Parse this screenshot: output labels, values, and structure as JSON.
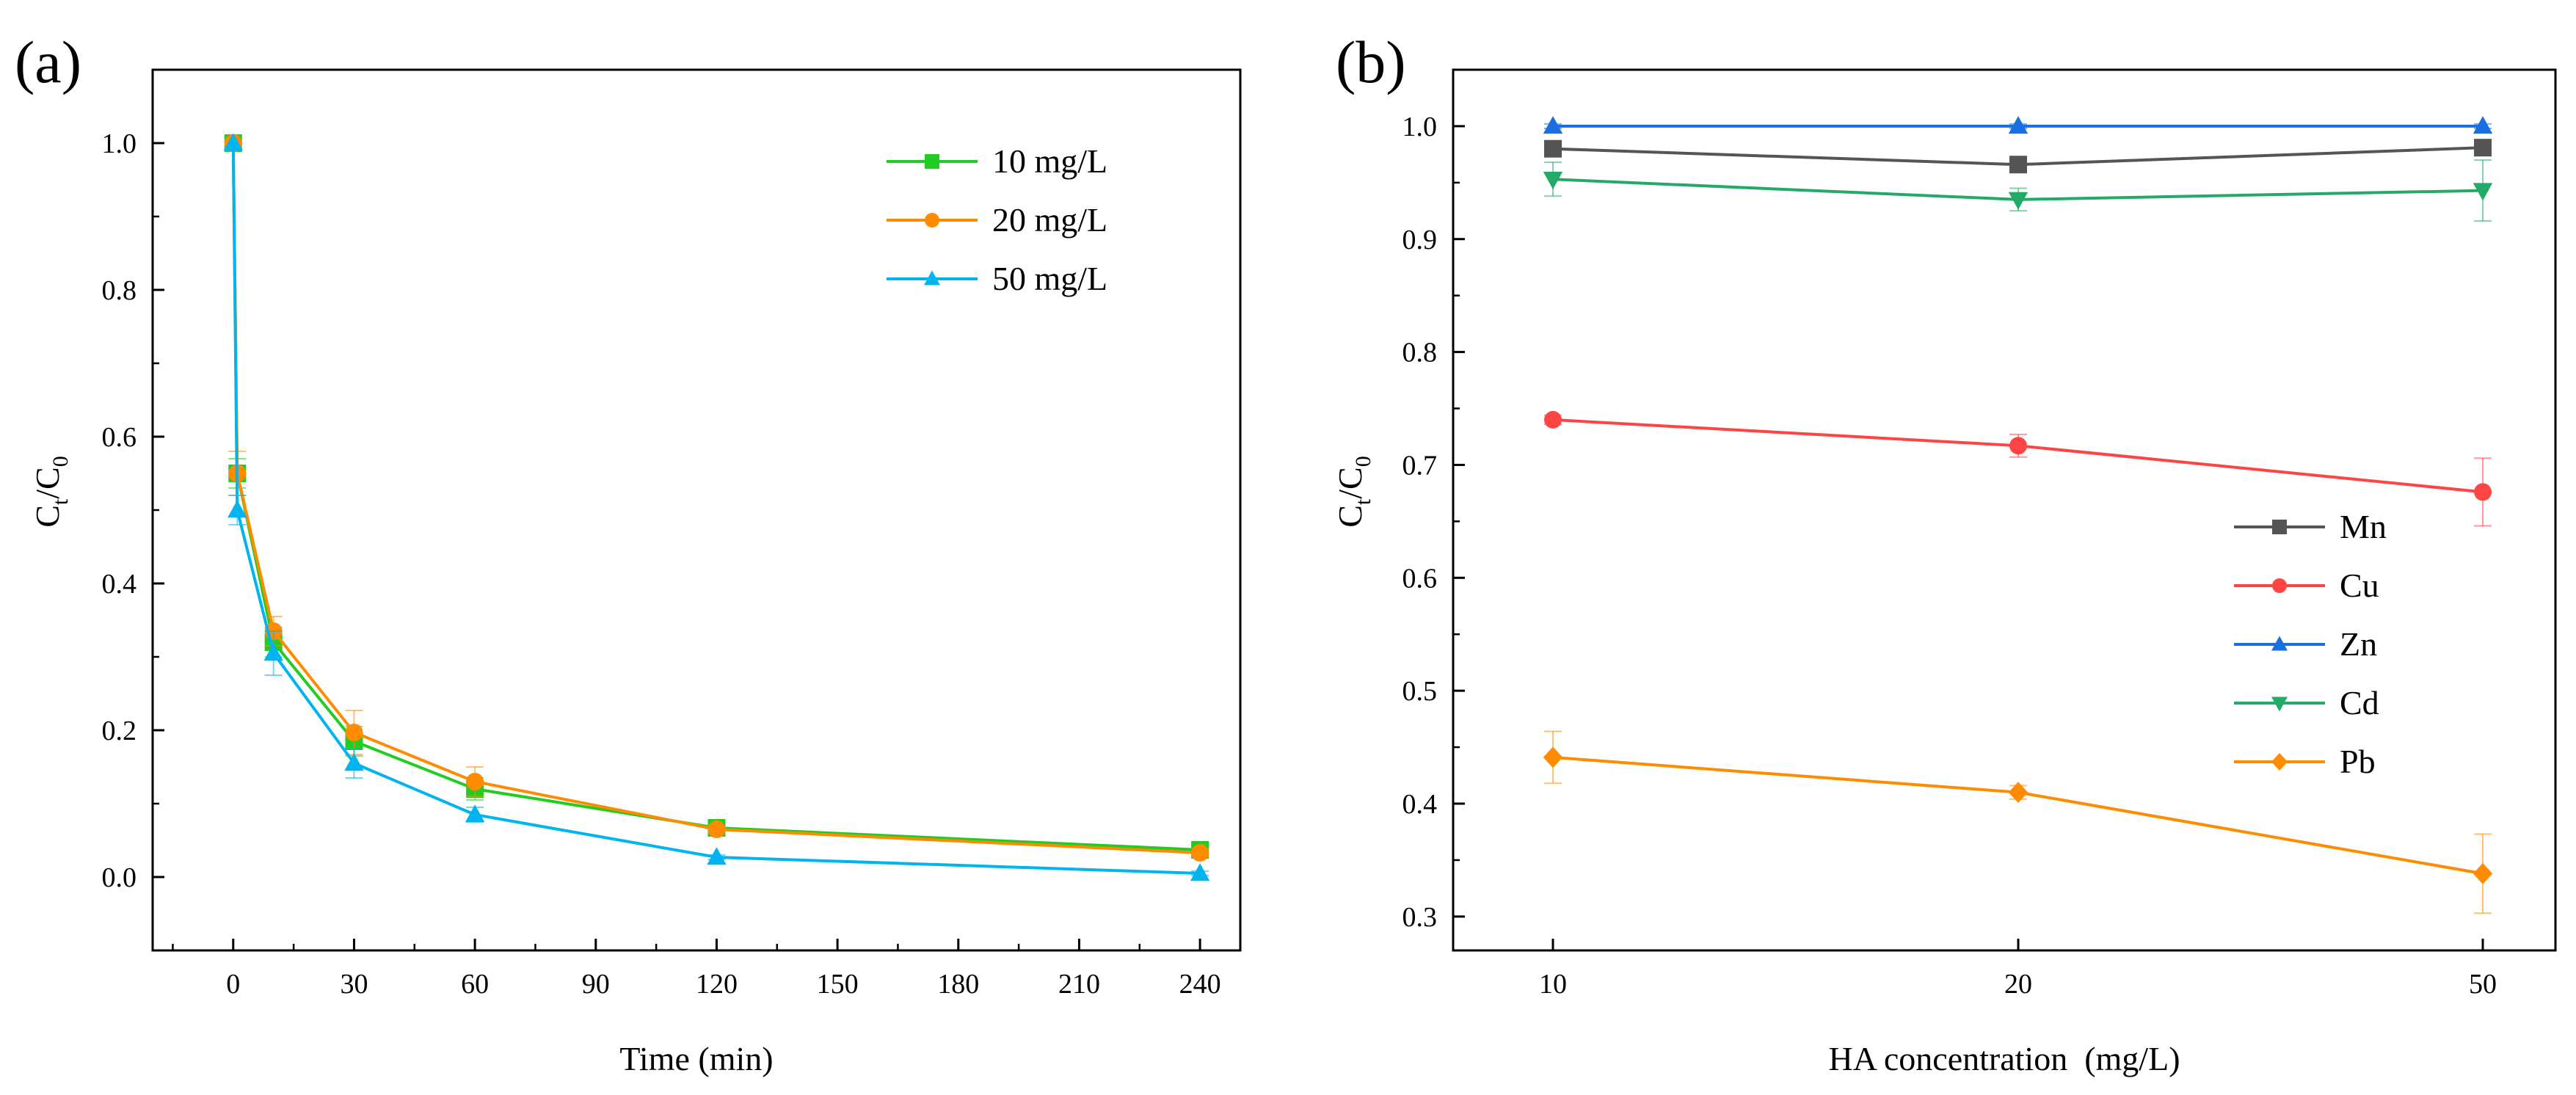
{
  "chart_data": [
    {
      "panel_label": "(a)",
      "type": "line",
      "xlabel": "Time (min)",
      "ylabel": "C_t/C_0",
      "ylabel_main": "C",
      "ylabel_sub1": "t",
      "ylabel_sub2": "0",
      "xlim": [
        -20,
        250
      ],
      "ylim": [
        -0.1,
        1.1
      ],
      "xticks": [
        0,
        30,
        60,
        90,
        120,
        150,
        180,
        210,
        240
      ],
      "yticks": [
        0.0,
        0.2,
        0.4,
        0.6,
        0.8,
        1.0
      ],
      "ytick_labels": [
        "0.0",
        "0.2",
        "0.4",
        "0.6",
        "0.8",
        "1.0"
      ],
      "legend_position": "top-right",
      "series": [
        {
          "name": "10 mg/L",
          "color": "#22cc22",
          "marker": "square",
          "x": [
            0,
            1,
            10,
            30,
            60,
            120,
            240
          ],
          "y": [
            1.0,
            0.55,
            0.32,
            0.185,
            0.12,
            0.067,
            0.037
          ],
          "err": [
            0.0,
            0.02,
            0.02,
            0.02,
            0.015,
            0.005,
            0.005
          ]
        },
        {
          "name": "20 mg/L",
          "color": "#ff8c00",
          "marker": "circle",
          "x": [
            0,
            1,
            10,
            30,
            60,
            120,
            240
          ],
          "y": [
            1.0,
            0.55,
            0.335,
            0.197,
            0.13,
            0.065,
            0.033
          ],
          "err": [
            0.0,
            0.03,
            0.02,
            0.03,
            0.02,
            0.005,
            0.005
          ]
        },
        {
          "name": "50 mg/L",
          "color": "#00b4f0",
          "marker": "triangle-up",
          "x": [
            0,
            1,
            10,
            30,
            60,
            120,
            240
          ],
          "y": [
            1.0,
            0.5,
            0.305,
            0.155,
            0.085,
            0.027,
            0.005
          ],
          "err": [
            0.0,
            0.02,
            0.03,
            0.02,
            0.01,
            0.003,
            0.003
          ]
        }
      ]
    },
    {
      "panel_label": "(b)",
      "type": "line",
      "xlabel": "HA concentration  (mg/L)",
      "ylabel": "C_t/C_0",
      "ylabel_main": "C",
      "ylabel_sub1": "t",
      "ylabel_sub2": "0",
      "categories": [
        "10",
        "20",
        "50"
      ],
      "ylim": [
        0.27,
        1.05
      ],
      "yticks": [
        0.3,
        0.4,
        0.5,
        0.6,
        0.7,
        0.8,
        0.9,
        1.0
      ],
      "ytick_labels": [
        "0.3",
        "0.4",
        "0.5",
        "0.6",
        "0.7",
        "0.8",
        "0.9",
        "1.0"
      ],
      "legend_position": "lower-right",
      "series": [
        {
          "name": "Mn",
          "color": "#555555",
          "marker": "square",
          "y": [
            0.98,
            0.966,
            0.981
          ],
          "err": [
            0.006,
            0.005,
            0.006
          ]
        },
        {
          "name": "Cu",
          "color": "#ff4444",
          "marker": "circle",
          "y": [
            0.74,
            0.717,
            0.676
          ],
          "err": [
            0.004,
            0.01,
            0.03
          ]
        },
        {
          "name": "Zn",
          "color": "#1a6fe0",
          "marker": "triangle-up",
          "y": [
            1.0,
            1.0,
            1.0
          ],
          "err": [
            0.002,
            0.002,
            0.002
          ]
        },
        {
          "name": "Cd",
          "color": "#22aa66",
          "marker": "triangle-down",
          "y": [
            0.953,
            0.935,
            0.943
          ],
          "err": [
            0.015,
            0.01,
            0.027
          ]
        },
        {
          "name": "Pb",
          "color": "#ff8c00",
          "marker": "diamond",
          "y": [
            0.441,
            0.41,
            0.338
          ],
          "err": [
            0.023,
            0.006,
            0.035
          ]
        }
      ]
    }
  ]
}
